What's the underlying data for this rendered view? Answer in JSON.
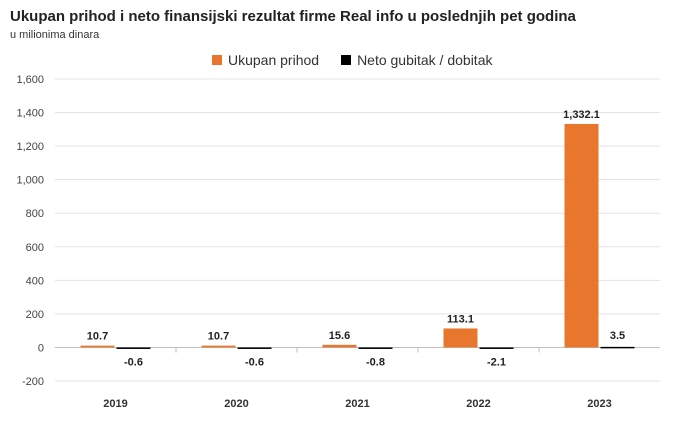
{
  "chart_data": {
    "type": "bar",
    "title": "Ukupan prihod i neto finansijski rezultat firme Real info u poslednjih pet godina",
    "subtitle": "u milionima dinara",
    "categories": [
      "2019",
      "2020",
      "2021",
      "2022",
      "2023"
    ],
    "series": [
      {
        "name": "Ukupan prihod",
        "values": [
          10.7,
          10.7,
          15.6,
          113.1,
          1332.1
        ],
        "labels": [
          "10.7",
          "10.7",
          "15.6",
          "113.1",
          "1,332.1"
        ],
        "color": "#E8762C"
      },
      {
        "name": "Neto gubitak / dobitak",
        "values": [
          -0.6,
          -0.6,
          -0.8,
          -2.1,
          3.5
        ],
        "labels": [
          "-0.6",
          "-0.6",
          "-0.8",
          "-2.1",
          "3.5"
        ],
        "color": "#000000"
      }
    ],
    "ylim": [
      -200,
      1600
    ],
    "yticks": [
      -200,
      0,
      200,
      400,
      600,
      800,
      1000,
      1200,
      1400,
      1600
    ],
    "ytick_labels": [
      "-200",
      "0",
      "200",
      "400",
      "600",
      "800",
      "1,000",
      "1,200",
      "1,400",
      "1,600"
    ],
    "grid": true,
    "legend_position": "top"
  }
}
